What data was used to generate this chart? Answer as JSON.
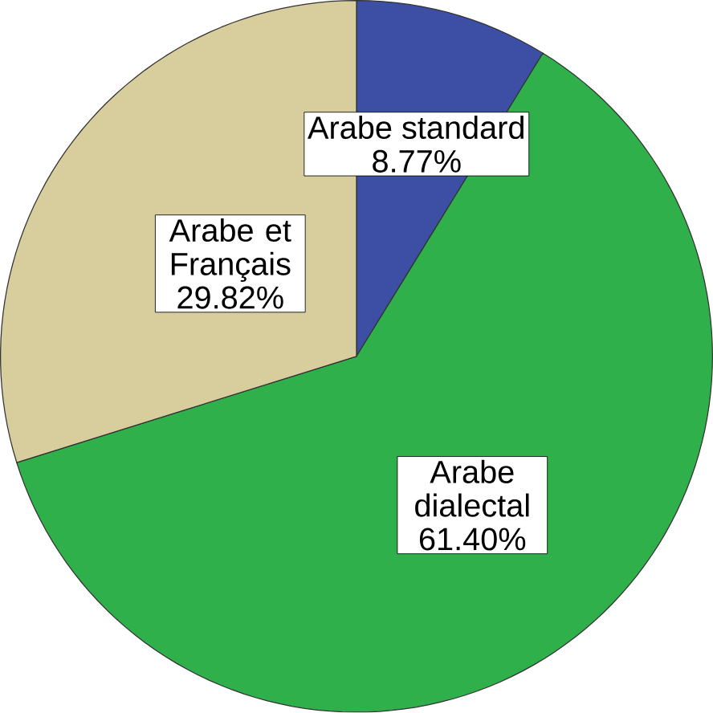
{
  "chart_data": {
    "type": "pie",
    "categories": [
      "Arabe standard",
      "Arabe dialectal",
      "Arabe et Français"
    ],
    "values": [
      8.77,
      61.4,
      29.82
    ],
    "value_labels": [
      "8.77%",
      "61.40%",
      "29.82%"
    ],
    "colors": [
      "#3c4fa5",
      "#2fb04a",
      "#d8cd9c"
    ]
  }
}
